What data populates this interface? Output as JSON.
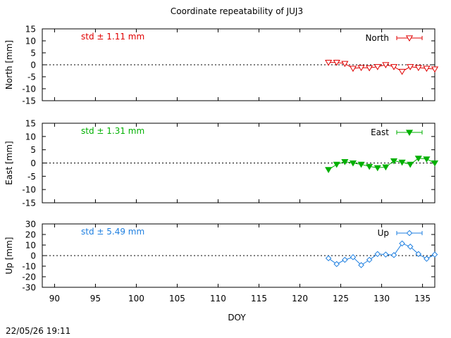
{
  "chart_data": {
    "type": "line",
    "title": "Coordinate repeatability of JUJ3",
    "xlabel": "DOY",
    "xlim": [
      88.5,
      136.5
    ],
    "xticks": [
      90,
      95,
      100,
      105,
      110,
      115,
      120,
      125,
      130,
      135
    ],
    "x": [
      123.5,
      124.5,
      125.5,
      126.5,
      127.5,
      128.5,
      129.5,
      130.5,
      131.5,
      132.5,
      133.5,
      134.5,
      135.5,
      136.5
    ],
    "grid": false,
    "legend_position": "top-right",
    "footer": "22/05/26 19:11",
    "panels": [
      {
        "name": "North",
        "ylabel": "North [mm]",
        "ylim": [
          -15,
          15
        ],
        "yticks": [
          15,
          10,
          5,
          0,
          -5,
          -10,
          -15
        ],
        "std_label": "std ± 1.11 mm",
        "color": "#e00000",
        "marker": "triangle-down-open",
        "values": [
          1.0,
          1.0,
          0.5,
          -1.5,
          -1.2,
          -1.3,
          -0.8,
          0.0,
          -0.8,
          -2.8,
          -0.8,
          -1.2,
          -1.5,
          -1.8
        ]
      },
      {
        "name": "East",
        "ylabel": "East [mm]",
        "ylim": [
          -15,
          15
        ],
        "yticks": [
          15,
          10,
          5,
          0,
          -5,
          -10,
          -15
        ],
        "std_label": "std ± 1.31 mm",
        "color": "#00b000",
        "marker": "triangle-down-filled",
        "values": [
          -2.5,
          -0.5,
          0.5,
          0.0,
          -0.5,
          -1.3,
          -1.8,
          -1.5,
          0.8,
          0.3,
          -0.5,
          1.8,
          1.5,
          0.0
        ]
      },
      {
        "name": "Up",
        "ylabel": "Up [mm]",
        "ylim": [
          -30,
          30
        ],
        "yticks": [
          30,
          20,
          10,
          0,
          -10,
          -20,
          -30
        ],
        "std_label": "std ± 5.49 mm",
        "color": "#1e7fe0",
        "marker": "diamond-open",
        "values": [
          -2.5,
          -8.0,
          -4.0,
          -1.5,
          -9.0,
          -4.0,
          1.5,
          1.0,
          0.5,
          11.5,
          8.5,
          1.5,
          -3.0,
          1.0
        ]
      }
    ]
  }
}
